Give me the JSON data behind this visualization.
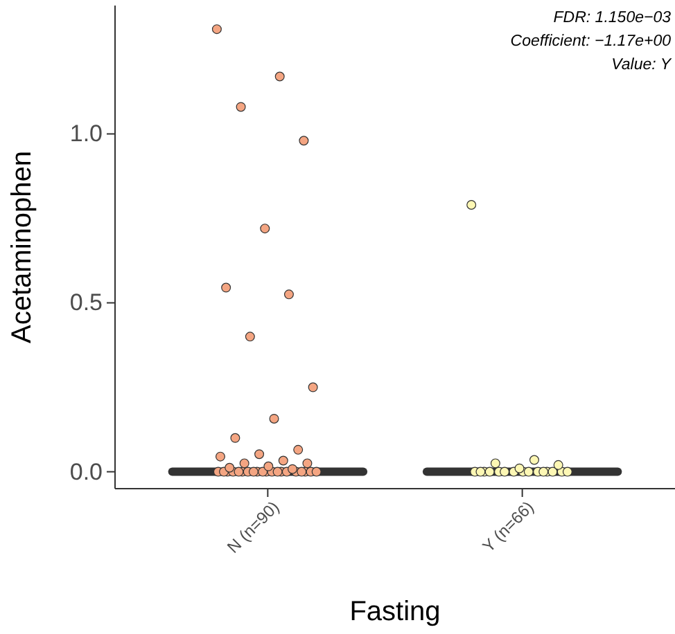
{
  "chart_data": {
    "type": "box",
    "xlabel": "Fasting",
    "ylabel": "Acetaminophen",
    "categories": [
      "N (n=90)",
      "Y (n=66)"
    ],
    "boxes": [
      {
        "low": 0,
        "q1": 0,
        "median": 0,
        "q3": 0,
        "high": 0
      },
      {
        "low": 0,
        "q1": 0,
        "median": 0,
        "q3": 0,
        "high": 0
      }
    ],
    "ylim": [
      -0.05,
      1.38
    ],
    "yticks": [
      {
        "value": 0,
        "label": "0.0"
      },
      {
        "value": 0.5,
        "label": "0.5"
      },
      {
        "value": 1,
        "label": "1.0"
      }
    ],
    "annotations": [
      "FDR: 1.150e−03",
      "Coefficient: −1.17e+00",
      "Value: Y"
    ],
    "grid": false,
    "series": [
      {
        "type": "scatter",
        "color": "#f4a582",
        "x": [
          "N (n=90)",
          "N (n=90)",
          "N (n=90)",
          "N (n=90)",
          "N (n=90)",
          "N (n=90)",
          "N (n=90)",
          "N (n=90)",
          "N (n=90)",
          "N (n=90)",
          "N (n=90)",
          "N (n=90)",
          "N (n=90)",
          "N (n=90)",
          "N (n=90)",
          "N (n=90)",
          "N (n=90)",
          "N (n=90)",
          "N (n=90)",
          "N (n=90)",
          "N (n=90)",
          "N (n=90)",
          "N (n=90)",
          "N (n=90)",
          "N (n=90)",
          "N (n=90)",
          "N (n=90)",
          "N (n=90)",
          "N (n=90)",
          "N (n=90)",
          "N (n=90)",
          "N (n=90)",
          "N (n=90)",
          "N (n=90)",
          "N (n=90)",
          "N (n=90)",
          "N (n=90)",
          "N (n=90)",
          "N (n=90)",
          "N (n=90)"
        ],
        "values": [
          1.31,
          1.17,
          1.08,
          0.98,
          0.72,
          0.545,
          0.525,
          0.4,
          0.25,
          0.157,
          0.1,
          0.065,
          0.052,
          0.045,
          0.033,
          0.025,
          0.025,
          0.016,
          0.012,
          0.008,
          0,
          0,
          0,
          0,
          0,
          0,
          0,
          0,
          0,
          0,
          0,
          0,
          0,
          0,
          0,
          0,
          0,
          0,
          0,
          0
        ]
      },
      {
        "type": "scatter",
        "color": "#fdf7b4",
        "x": [
          "Y (n=66)",
          "Y (n=66)",
          "Y (n=66)",
          "Y (n=66)",
          "Y (n=66)",
          "Y (n=66)",
          "Y (n=66)",
          "Y (n=66)",
          "Y (n=66)",
          "Y (n=66)",
          "Y (n=66)",
          "Y (n=66)",
          "Y (n=66)",
          "Y (n=66)",
          "Y (n=66)",
          "Y (n=66)",
          "Y (n=66)",
          "Y (n=66)",
          "Y (n=66)",
          "Y (n=66)"
        ],
        "values": [
          0.79,
          0.035,
          0.025,
          0.02,
          0.01,
          0,
          0,
          0,
          0,
          0,
          0,
          0,
          0,
          0,
          0,
          0,
          0,
          0,
          0,
          0
        ]
      }
    ]
  }
}
